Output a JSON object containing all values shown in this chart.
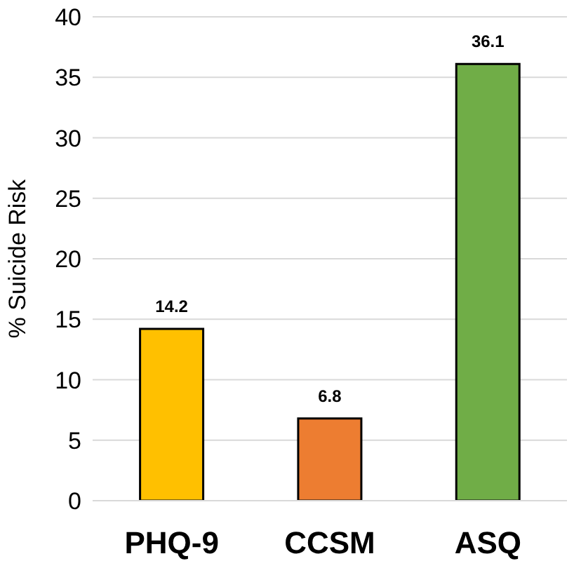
{
  "chart_data": {
    "type": "bar",
    "ylabel": "% Suicide Risk",
    "categories": [
      "PHQ-9",
      "CCSM",
      "ASQ"
    ],
    "values": [
      14.2,
      6.8,
      36.1
    ],
    "colors": [
      "#ffc000",
      "#ed7d31",
      "#70ad47"
    ],
    "ylim": [
      0,
      40
    ],
    "yticks": [
      0,
      5,
      10,
      15,
      20,
      25,
      30,
      35,
      40
    ],
    "grid": "y",
    "data_labels": true
  }
}
